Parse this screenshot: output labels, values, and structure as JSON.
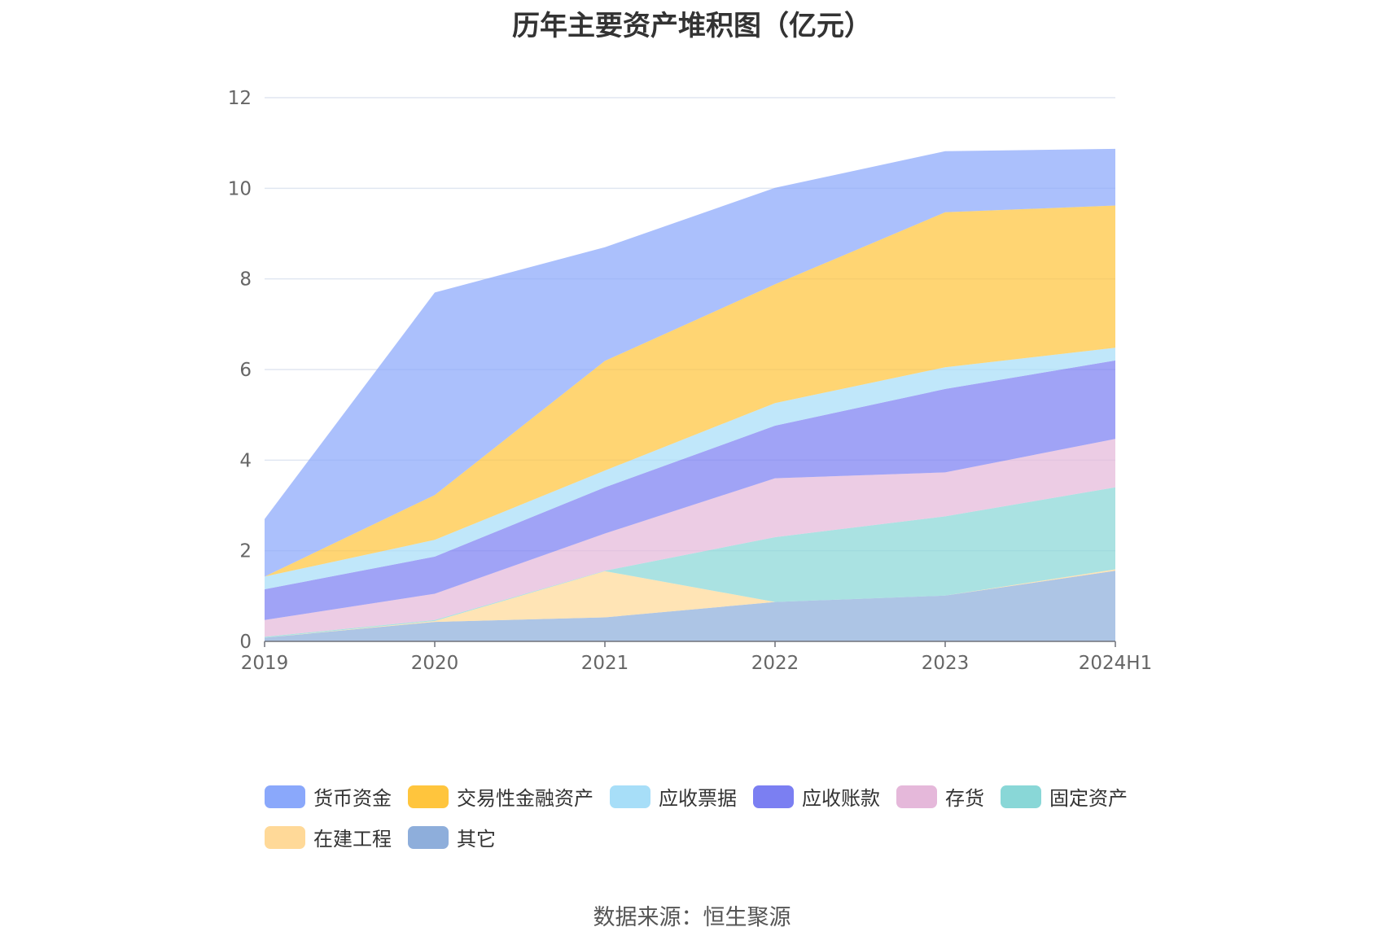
{
  "chart_data": {
    "type": "area",
    "stacked": true,
    "title": "历年主要资产堆积图（亿元）",
    "source": "数据来源：恒生聚源",
    "categories": [
      "2019",
      "2020",
      "2021",
      "2022",
      "2023",
      "2024H1"
    ],
    "ylim": [
      0,
      12
    ],
    "yticks": [
      "0",
      "2",
      "4",
      "6",
      "8",
      "10",
      "12"
    ],
    "grid": true,
    "legend_position": "bottom",
    "series": [
      {
        "name": "其它",
        "color": "#8eaedb",
        "values": [
          0.08,
          0.43,
          0.53,
          0.87,
          1.01,
          1.56
        ]
      },
      {
        "name": "在建工程",
        "color": "#ffd998",
        "values": [
          0.0,
          0.02,
          1.02,
          0.0,
          0.0,
          0.03
        ]
      },
      {
        "name": "固定资产",
        "color": "#89d7d7",
        "values": [
          0.02,
          0.02,
          0.01,
          1.43,
          1.75,
          1.81
        ]
      },
      {
        "name": "存货",
        "color": "#e5b8da",
        "values": [
          0.37,
          0.58,
          0.82,
          1.3,
          0.97,
          1.07
        ]
      },
      {
        "name": "应收账款",
        "color": "#7b7ff2",
        "values": [
          0.68,
          0.82,
          1.02,
          1.16,
          1.84,
          1.73
        ]
      },
      {
        "name": "应收票据",
        "color": "#a7def8",
        "values": [
          0.28,
          0.37,
          0.37,
          0.5,
          0.48,
          0.28
        ]
      },
      {
        "name": "交易性金融资产",
        "color": "#ffc53d",
        "values": [
          0.0,
          0.99,
          2.42,
          2.62,
          3.42,
          3.14
        ]
      },
      {
        "name": "货币资金",
        "color": "#8aa8fb",
        "values": [
          1.27,
          4.47,
          2.51,
          2.13,
          1.35,
          1.25
        ]
      }
    ],
    "legend_order": [
      "货币资金",
      "交易性金融资产",
      "应收票据",
      "应收账款",
      "存货",
      "固定资产",
      "在建工程",
      "其它"
    ]
  }
}
